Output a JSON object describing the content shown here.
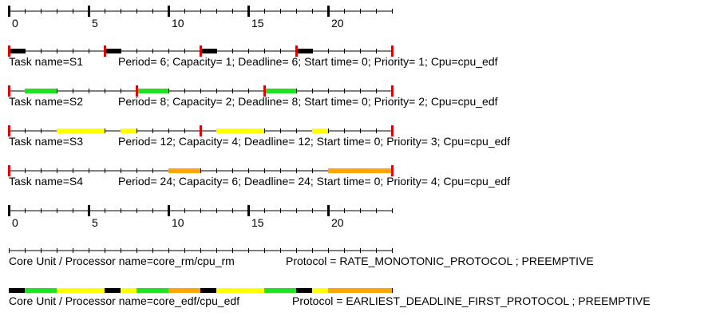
{
  "colors": {
    "axis": "#000000",
    "release": "#e00000",
    "S1": "#000000",
    "S2": "#22e022",
    "S3": "#ffff00",
    "S4": "#ffa500"
  },
  "axis": {
    "tmax": 24,
    "labels": [
      {
        "t": 0,
        "text": "0"
      },
      {
        "t": 5,
        "text": "5"
      },
      {
        "t": 10,
        "text": "10"
      },
      {
        "t": 15,
        "text": "15"
      },
      {
        "t": 20,
        "text": "20"
      }
    ]
  },
  "tasks": [
    {
      "id": "S1",
      "name_text": "Task name=S1",
      "params_text": "Period= 6; Capacity= 1; Deadline= 6; Start time= 0; Priority= 1; Cpu=cpu_edf",
      "releases": [
        0,
        6,
        12,
        18,
        24
      ],
      "slots": [
        [
          0,
          1
        ],
        [
          6,
          7
        ],
        [
          12,
          13
        ],
        [
          18,
          19
        ]
      ]
    },
    {
      "id": "S2",
      "name_text": "Task name=S2",
      "params_text": "Period= 8; Capacity= 2; Deadline= 8; Start time= 0; Priority= 2; Cpu=cpu_edf",
      "releases": [
        0,
        8,
        16,
        24
      ],
      "slots": [
        [
          1,
          3
        ],
        [
          8,
          10
        ],
        [
          16,
          18
        ]
      ]
    },
    {
      "id": "S3",
      "name_text": "Task name=S3",
      "params_text": "Period= 12; Capacity= 4; Deadline= 12; Start time= 0; Priority= 3; Cpu=cpu_edf",
      "releases": [
        0,
        12,
        24
      ],
      "slots": [
        [
          3,
          6
        ],
        [
          7,
          8
        ],
        [
          13,
          16
        ],
        [
          19,
          20
        ]
      ]
    },
    {
      "id": "S4",
      "name_text": "Task name=S4",
      "params_text": "Period= 24; Capacity= 6; Deadline= 24; Start time= 0; Priority= 4; Cpu=cpu_edf",
      "releases": [
        0,
        24
      ],
      "slots": [
        [
          10,
          12
        ],
        [
          20,
          24
        ]
      ]
    }
  ],
  "processors": [
    {
      "name_text": "Core Unit / Processor name=core_rm/cpu_rm",
      "protocol_text": "Protocol = RATE_MONOTONIC_PROTOCOL ; PREEMPTIVE",
      "slots": []
    },
    {
      "name_text": "Core Unit / Processor name=core_edf/cpu_edf",
      "protocol_text": "Protocol = EARLIEST_DEADLINE_FIRST_PROTOCOL ; PREEMPTIVE",
      "slots": [
        [
          0,
          1,
          "S1"
        ],
        [
          1,
          3,
          "S2"
        ],
        [
          3,
          6,
          "S3"
        ],
        [
          6,
          7,
          "S1"
        ],
        [
          7,
          8,
          "S3"
        ],
        [
          8,
          10,
          "S2"
        ],
        [
          10,
          12,
          "S4"
        ],
        [
          12,
          13,
          "S1"
        ],
        [
          13,
          16,
          "S3"
        ],
        [
          16,
          18,
          "S2"
        ],
        [
          18,
          19,
          "S1"
        ],
        [
          19,
          20,
          "S3"
        ],
        [
          20,
          24,
          "S4"
        ]
      ]
    }
  ]
}
